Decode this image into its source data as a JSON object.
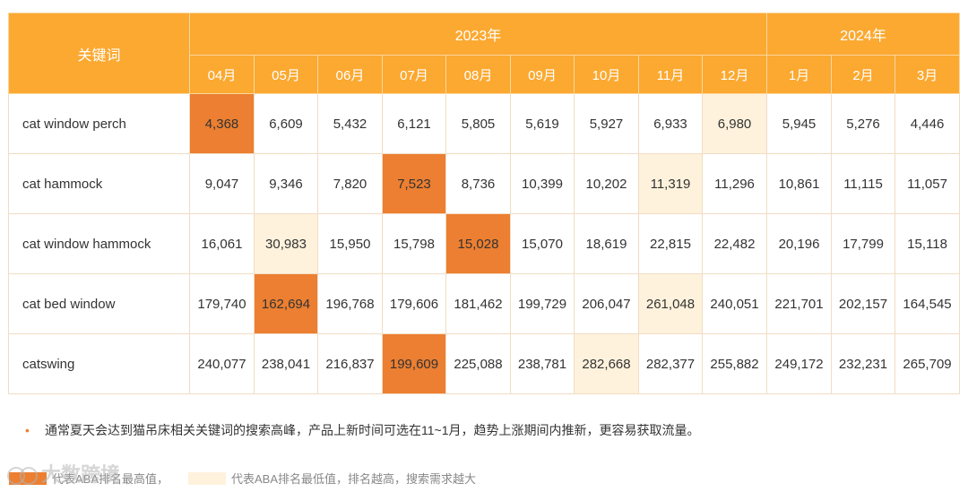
{
  "table": {
    "keyword_header": "关键词",
    "years": [
      {
        "label": "2023年",
        "span": 9
      },
      {
        "label": "2024年",
        "span": 3
      }
    ],
    "months": [
      "04月",
      "05月",
      "06月",
      "07月",
      "08月",
      "09月",
      "10月",
      "11月",
      "12月",
      "1月",
      "2月",
      "3月"
    ],
    "rows": [
      {
        "keyword": "cat window perch",
        "values": [
          "4,368",
          "6,609",
          "5,432",
          "6,121",
          "5,805",
          "5,619",
          "5,927",
          "6,933",
          "6,980",
          "5,945",
          "5,276",
          "4,446"
        ],
        "high_index": 0,
        "low_index": 8
      },
      {
        "keyword": "cat hammock",
        "values": [
          "9,047",
          "9,346",
          "7,820",
          "7,523",
          "8,736",
          "10,399",
          "10,202",
          "11,319",
          "11,296",
          "10,861",
          "11,115",
          "11,057"
        ],
        "high_index": 3,
        "low_index": 7
      },
      {
        "keyword": "cat window hammock",
        "values": [
          "16,061",
          "30,983",
          "15,950",
          "15,798",
          "15,028",
          "15,070",
          "18,619",
          "22,815",
          "22,482",
          "20,196",
          "17,799",
          "15,118"
        ],
        "high_index": 4,
        "low_index": 1
      },
      {
        "keyword": "cat bed window",
        "values": [
          "179,740",
          "162,694",
          "196,768",
          "179,606",
          "181,462",
          "199,729",
          "206,047",
          "261,048",
          "240,051",
          "221,701",
          "202,157",
          "164,545"
        ],
        "high_index": 1,
        "low_index": 7
      },
      {
        "keyword": "catswing",
        "values": [
          "240,077",
          "238,041",
          "216,837",
          "199,609",
          "225,088",
          "238,781",
          "282,668",
          "282,377",
          "255,882",
          "249,172",
          "232,231",
          "265,709"
        ],
        "high_index": 3,
        "low_index": 6
      }
    ]
  },
  "note": {
    "bullet": "•",
    "text": "通常夏天会达到猫吊床相关关键词的搜索高峰，产品上新时间可选在11~1月，趋势上涨期间内推新，更容易获取流量。"
  },
  "legend": {
    "high_label": "代表ABA排名最高值，",
    "low_label": "代表ABA排名最低值，排名越高，搜索需求越大"
  },
  "watermark": {
    "text": "大数跨境"
  },
  "colors": {
    "header_bg": "#fba931",
    "high_cell": "#ec7f31",
    "low_cell": "#fef2dc"
  }
}
